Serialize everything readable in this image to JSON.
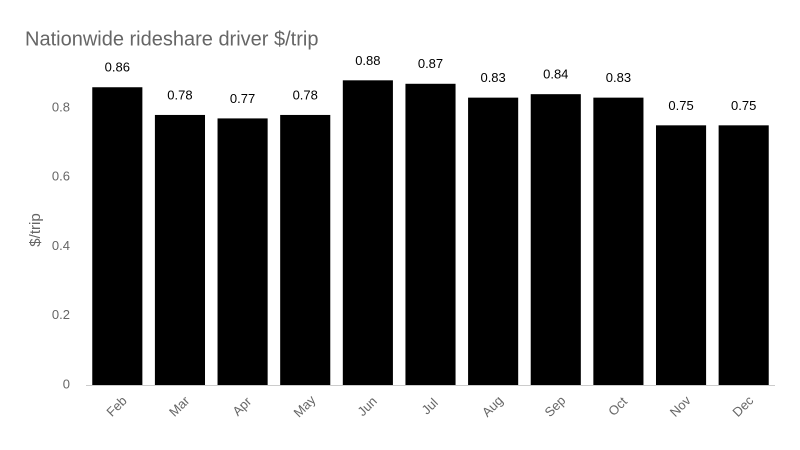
{
  "chart_data": {
    "type": "bar",
    "title": "Nationwide rideshare driver $/trip",
    "y_label": "$/trip",
    "categories": [
      "Feb",
      "Mar",
      "Apr",
      "May",
      "Jun",
      "Jul",
      "Aug",
      "Sep",
      "Oct",
      "Nov",
      "Dec"
    ],
    "values": [
      0.86,
      0.78,
      0.77,
      0.78,
      0.88,
      0.87,
      0.83,
      0.84,
      0.83,
      0.75,
      0.75
    ],
    "color": "#000000",
    "ylim": [
      0,
      0.9
    ],
    "yticks": [
      0,
      0.2,
      0.4,
      0.6,
      0.8
    ],
    "grid": false
  }
}
